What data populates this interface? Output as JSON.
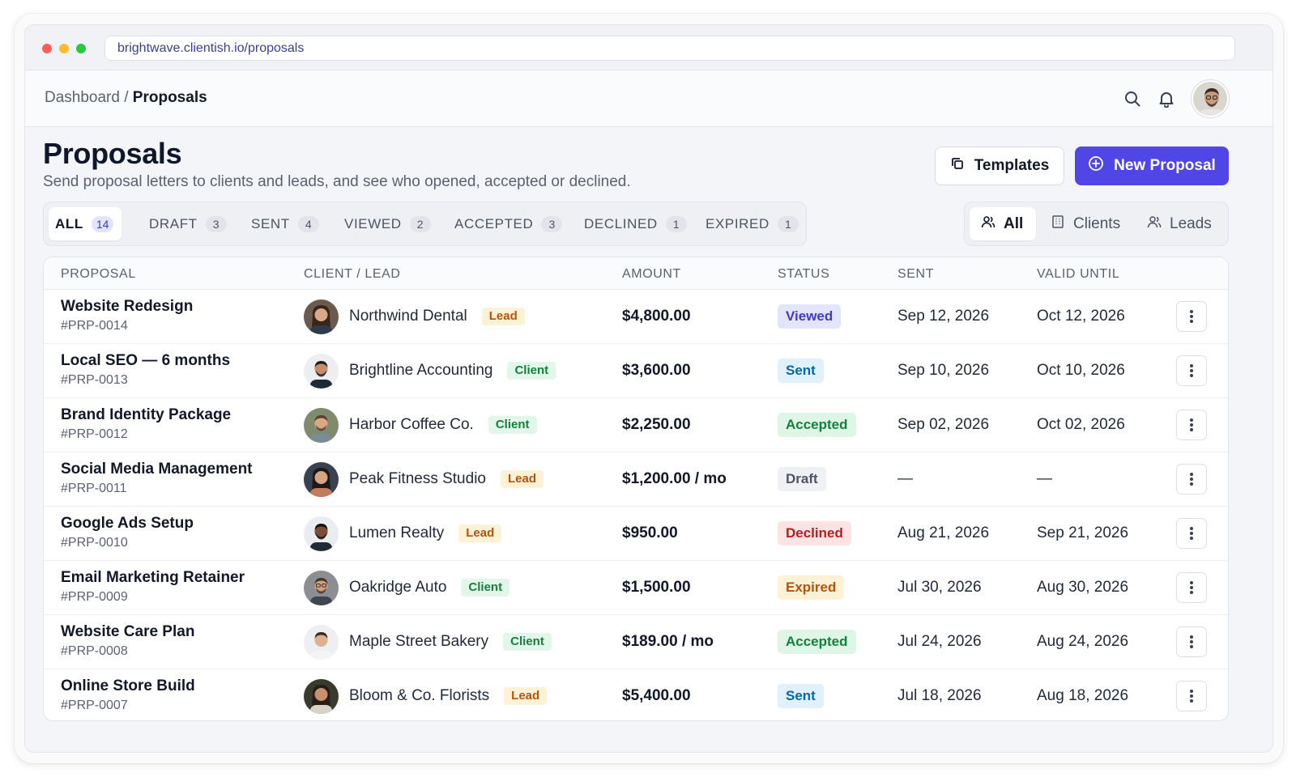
{
  "browser": {
    "url": "brightwave.clientish.io/proposals"
  },
  "header": {
    "breadcrumb_parent": "Dashboard",
    "breadcrumb_sep": "/",
    "breadcrumb_current": "Proposals",
    "icons": [
      "search-icon",
      "bell-icon",
      "user-avatar"
    ]
  },
  "page": {
    "title": "Proposals",
    "subtitle": "Send proposal letters to clients and leads, and see who opened, accepted or declined.",
    "templates_label": "Templates",
    "new_label": "New Proposal"
  },
  "status_tabs": [
    {
      "label": "ALL",
      "count": "14",
      "active": true
    },
    {
      "label": "DRAFT",
      "count": "3"
    },
    {
      "label": "SENT",
      "count": "4"
    },
    {
      "label": "VIEWED",
      "count": "2"
    },
    {
      "label": "ACCEPTED",
      "count": "3"
    },
    {
      "label": "DECLINED",
      "count": "1"
    },
    {
      "label": "EXPIRED",
      "count": "1"
    }
  ],
  "type_tabs": [
    {
      "label": "All",
      "icon": "users-icon",
      "active": true
    },
    {
      "label": "Clients",
      "icon": "building-icon"
    },
    {
      "label": "Leads",
      "icon": "user-plus-icon"
    }
  ],
  "table": {
    "columns": [
      "PROPOSAL",
      "CLIENT / LEAD",
      "AMOUNT",
      "STATUS",
      "SENT",
      "VALID UNTIL"
    ],
    "rows": [
      {
        "name": "Website Redesign",
        "id": "#PRP-0014",
        "client": "Northwind Dental",
        "type": "Lead",
        "amount": "$4,800.00",
        "status": "Viewed",
        "sent": "Sep 12, 2026",
        "valid": "Oct 12, 2026"
      },
      {
        "name": "Local SEO — 6 months",
        "id": "#PRP-0013",
        "client": "Brightline Accounting",
        "type": "Client",
        "amount": "$3,600.00",
        "status": "Sent",
        "sent": "Sep 10, 2026",
        "valid": "Oct 10, 2026"
      },
      {
        "name": "Brand Identity Package",
        "id": "#PRP-0012",
        "client": "Harbor Coffee Co.",
        "type": "Client",
        "amount": "$2,250.00",
        "status": "Accepted",
        "sent": "Sep 02, 2026",
        "valid": "Oct 02, 2026"
      },
      {
        "name": "Social Media Management",
        "id": "#PRP-0011",
        "client": "Peak Fitness Studio",
        "type": "Lead",
        "amount": "$1,200.00 / mo",
        "status": "Draft",
        "sent": "—",
        "valid": "—"
      },
      {
        "name": "Google Ads Setup",
        "id": "#PRP-0010",
        "client": "Lumen Realty",
        "type": "Lead",
        "amount": "$950.00",
        "status": "Declined",
        "sent": "Aug 21, 2026",
        "valid": "Sep 21, 2026"
      },
      {
        "name": "Email Marketing Retainer",
        "id": "#PRP-0009",
        "client": "Oakridge Auto",
        "type": "Client",
        "amount": "$1,500.00",
        "status": "Expired",
        "sent": "Jul 30, 2026",
        "valid": "Aug 30, 2026"
      },
      {
        "name": "Website Care Plan",
        "id": "#PRP-0008",
        "client": "Maple Street Bakery",
        "type": "Client",
        "amount": "$189.00 / mo",
        "status": "Accepted",
        "sent": "Jul 24, 2026",
        "valid": "Aug 24, 2026"
      },
      {
        "name": "Online Store Build",
        "id": "#PRP-0007",
        "client": "Bloom & Co. Florists",
        "type": "Lead",
        "amount": "$5,400.00",
        "status": "Sent",
        "sent": "Jul 18, 2026",
        "valid": "Aug 18, 2026"
      }
    ]
  },
  "colors": {
    "accent": "#4f46e5",
    "lead_tag": "#b45309",
    "client_tag": "#15803d",
    "viewed": "#4338ca",
    "sent": "#0369a1",
    "accepted": "#15803d",
    "declined": "#b91c1c",
    "expired": "#b45309"
  }
}
